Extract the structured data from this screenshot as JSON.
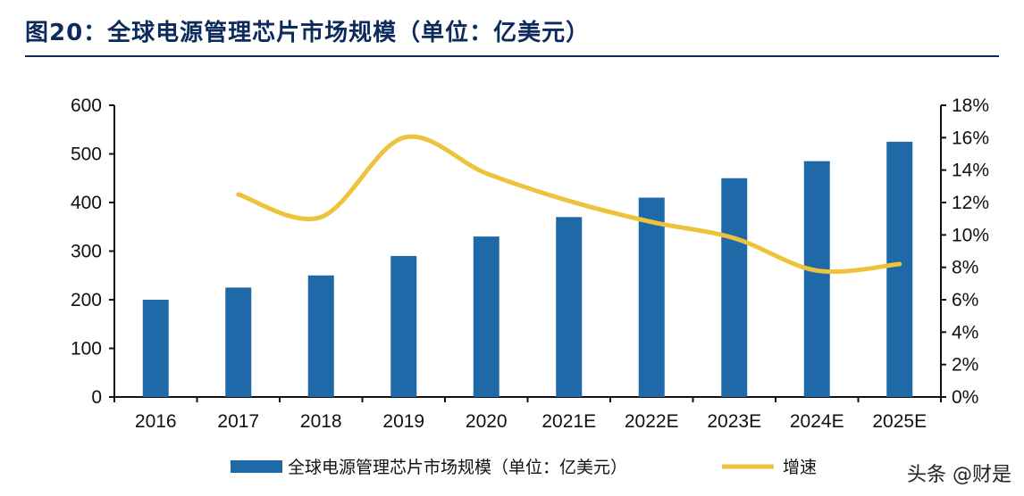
{
  "title": "图20：全球电源管理芯片市场规模（单位：亿美元）",
  "watermark": "头条 @财是",
  "chart_data": {
    "type": "bar+line",
    "categories": [
      "2016",
      "2017",
      "2018",
      "2019",
      "2020",
      "2021E",
      "2022E",
      "2023E",
      "2024E",
      "2025E"
    ],
    "series": [
      {
        "name": "全球电源管理芯片市场规模（单位：亿美元）",
        "type": "bar",
        "axis": "left",
        "color": "#1f69a8",
        "values": [
          200,
          225,
          250,
          290,
          330,
          370,
          410,
          450,
          485,
          525
        ]
      },
      {
        "name": "增速",
        "type": "line",
        "axis": "right",
        "color": "#eec33c",
        "values": [
          null,
          12.5,
          11.1,
          16.0,
          13.8,
          12.1,
          10.8,
          9.8,
          7.8,
          8.2
        ]
      }
    ],
    "ylim_left": [
      0,
      600
    ],
    "yticks_left": [
      "0",
      "100",
      "200",
      "300",
      "400",
      "500",
      "600"
    ],
    "ylim_right": [
      0,
      18
    ],
    "yticks_right": [
      "0%",
      "2%",
      "4%",
      "6%",
      "8%",
      "10%",
      "12%",
      "14%",
      "16%",
      "18%"
    ],
    "grid": false,
    "legend": "bottom"
  }
}
